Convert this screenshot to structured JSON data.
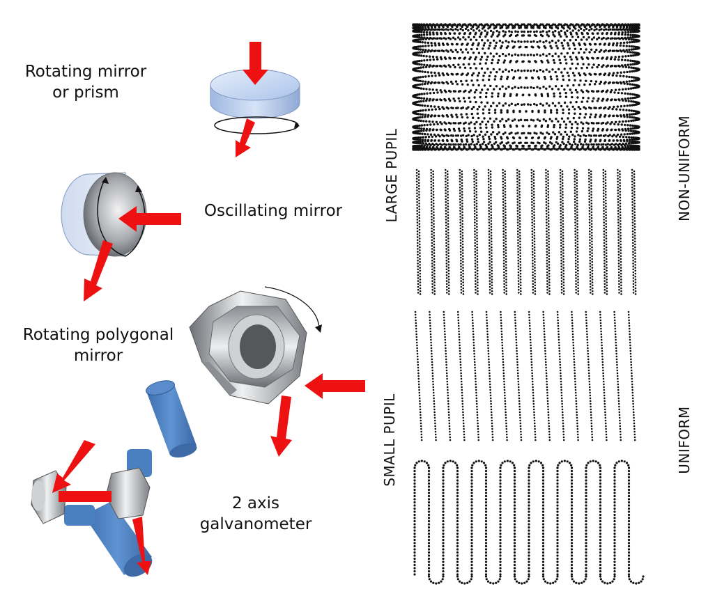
{
  "scanners": {
    "rotating_mirror": {
      "line1": "Rotating mirror",
      "line2": "or prism"
    },
    "oscillating_mirror": {
      "line1": "Oscillating mirror"
    },
    "polygonal_mirror": {
      "line1": "Rotating polygonal",
      "line2": "mirror"
    },
    "galvanometer": {
      "line1": "2 axis",
      "line2": "galvanometer"
    }
  },
  "pattern_labels": {
    "large_pupil": "LARGE PUPIL",
    "small_pupil": "SMALL PUPIL",
    "non_uniform": "NON-UNIFORM",
    "uniform": "UNIFORM"
  },
  "colors": {
    "beam": "#ee1111",
    "disc": "#c9daf3",
    "cylinder": "#4a7fc0",
    "metal": "#b9bcc0",
    "dots": "#111111"
  },
  "icons": [
    "laser-beam-arrow",
    "rotation-arrow",
    "mirror-disc",
    "oscillating-mirror-cylinder",
    "polygon-mirror",
    "galvo-motor"
  ]
}
